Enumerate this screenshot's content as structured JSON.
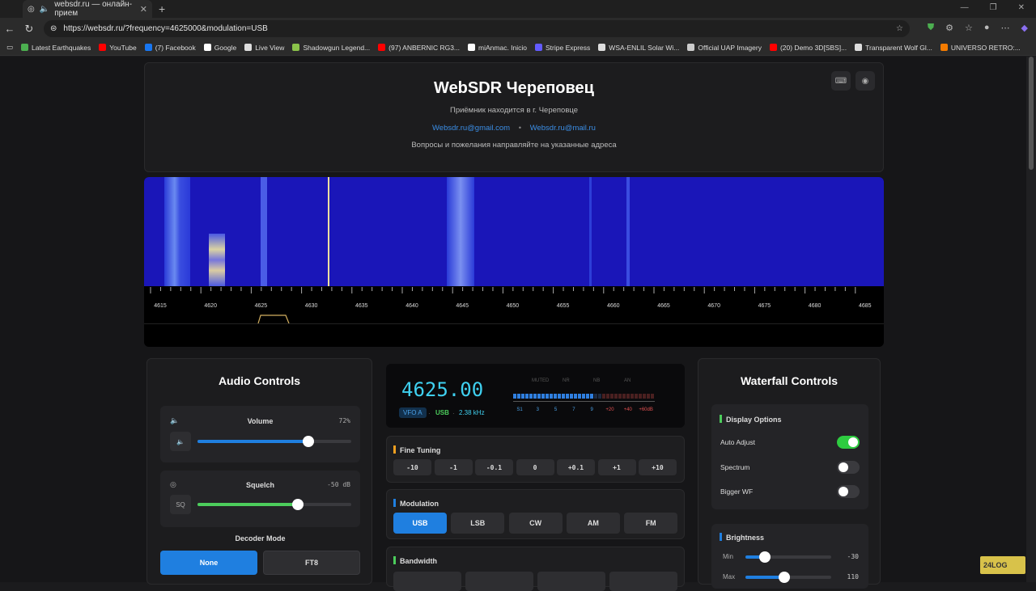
{
  "browser": {
    "tab_title": "websdr.ru — онлайн-прием",
    "url": "https://websdr.ru/?frequency=4625000&modulation=USB",
    "bookmarks": [
      {
        "label": "Latest Earthquakes",
        "color": "#4caf50"
      },
      {
        "label": "YouTube",
        "color": "#ff0000"
      },
      {
        "label": "(7) Facebook",
        "color": "#1877f2"
      },
      {
        "label": "Google",
        "color": "#ffffff"
      },
      {
        "label": "Live View",
        "color": "#dddddd"
      },
      {
        "label": "Shadowgun Legend...",
        "color": "#8bc34a"
      },
      {
        "label": "(97) ANBERNIC RG3...",
        "color": "#ff0000"
      },
      {
        "label": "miAnmac. Inicio",
        "color": "#ffffff"
      },
      {
        "label": "Stripe Express",
        "color": "#635bff"
      },
      {
        "label": "WSA-ENLIL Solar Wi...",
        "color": "#dddddd"
      },
      {
        "label": "Official UAP Imagery",
        "color": "#cccccc"
      },
      {
        "label": "(20) Demo 3D[SBS]...",
        "color": "#ff0000"
      },
      {
        "label": "Transparent Wolf Gl...",
        "color": "#dddddd"
      },
      {
        "label": "UNIVERSO RETRO:...",
        "color": "#f57c00"
      }
    ]
  },
  "header": {
    "title": "WebSDR Череповец",
    "subtitle": "Приёмник находится в г. Череповце",
    "email1": "Websdr.ru@gmail.com",
    "separator": "•",
    "email2": "Websdr.ru@mail.ru",
    "note": "Вопросы и пожелания направляйте на указанные адреса"
  },
  "scale": {
    "labels": [
      "4615",
      "4620",
      "4625",
      "4630",
      "4635",
      "4640",
      "4645",
      "4650",
      "4655",
      "4660",
      "4665",
      "4670",
      "4675",
      "4680",
      "4685"
    ]
  },
  "audio": {
    "title": "Audio Controls",
    "volume_label": "Volume",
    "volume_value": "72%",
    "volume_level": 0.72,
    "squelch_label": "Squelch",
    "squelch_value": "-50 dB",
    "squelch_btn": "SQ",
    "decoder_label": "Decoder Mode",
    "decoder_none": "None",
    "decoder_ft8": "FT8"
  },
  "display": {
    "frequency": "4625.00",
    "vfo": "VFO A",
    "mode": "USB",
    "bandwidth": "2.38 kHz",
    "flags": [
      "MUTED",
      "NR",
      "NB",
      "AN"
    ],
    "meter_labels": [
      "S1",
      "3",
      "5",
      "7",
      "9",
      "+20",
      "+40",
      "+60dB"
    ],
    "meter_level": 0.57
  },
  "fine_tuning": {
    "label": "Fine Tuning",
    "steps": [
      "-10",
      "-1",
      "-0.1",
      "0",
      "+0.1",
      "+1",
      "+10"
    ]
  },
  "modulation": {
    "label": "Modulation",
    "modes": [
      "USB",
      "LSB",
      "CW",
      "AM",
      "FM"
    ],
    "active": "USB"
  },
  "bandwidth": {
    "label": "Bandwidth"
  },
  "waterfall_controls": {
    "title": "Waterfall Controls",
    "display_options_label": "Display Options",
    "auto_adjust": "Auto Adjust",
    "spectrum": "Spectrum",
    "bigger_wf": "Bigger WF",
    "brightness_label": "Brightness",
    "min_label": "Min",
    "min_value": "-30",
    "max_label": "Max",
    "max_value": "110"
  },
  "colors": {
    "accent_blue": "#1f7fe0",
    "toggle_on": "#2ecc40",
    "freq_cyan": "#3fd0f0"
  }
}
